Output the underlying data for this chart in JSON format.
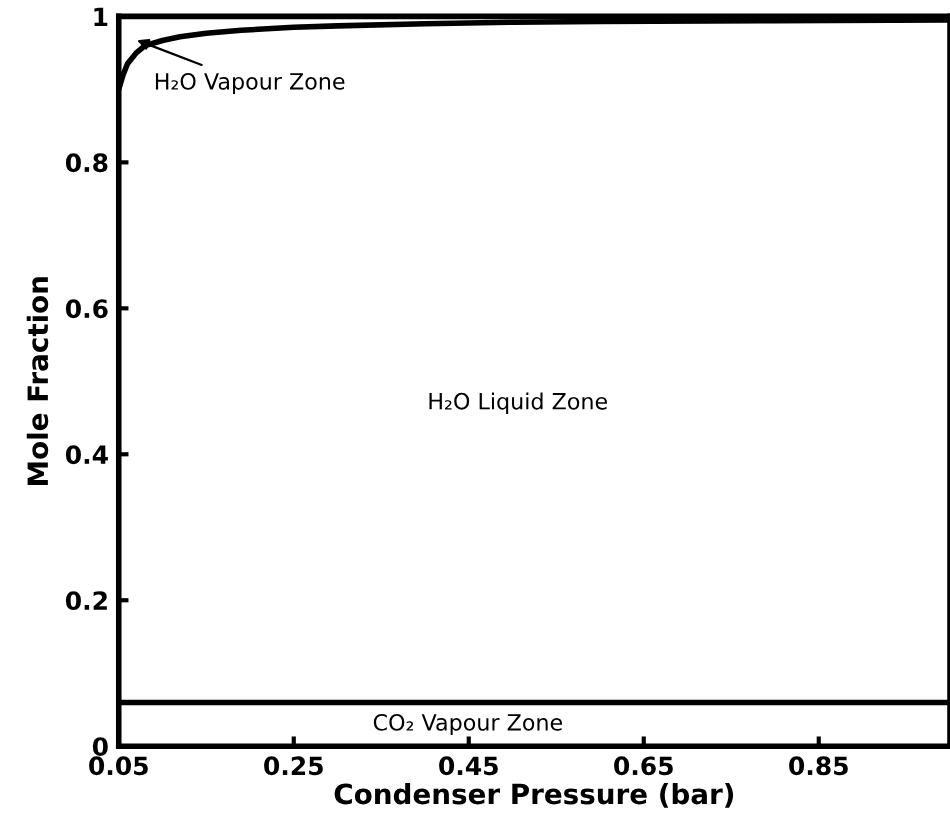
{
  "chart_data": {
    "type": "line",
    "xlabel": "Condenser Pressure (bar)",
    "ylabel": "Mole Fraction",
    "xlim": [
      0.05,
      1.0
    ],
    "ylim": [
      0,
      1
    ],
    "xticks": [
      0.05,
      0.25,
      0.45,
      0.65,
      0.85
    ],
    "yticks": [
      0,
      0.2,
      0.4,
      0.6,
      0.8,
      1
    ],
    "series": [
      {
        "color": "#000000",
        "x": [
          0.05,
          0.055,
          0.06,
          0.07,
          0.08,
          0.1,
          0.12,
          0.15,
          0.19,
          0.25,
          0.3,
          0.4,
          0.5,
          0.6,
          0.8,
          1.0
        ],
        "values": [
          0.9,
          0.92,
          0.935,
          0.95,
          0.96,
          0.967,
          0.972,
          0.977,
          0.981,
          0.985,
          0.987,
          0.99,
          0.992,
          0.993,
          0.994,
          0.995
        ]
      },
      {
        "color": "#000000",
        "x": [
          0.05,
          1.0
        ],
        "values": [
          0.06,
          0.06
        ]
      }
    ],
    "annotations": [
      {
        "text": "H₂O Vapour Zone",
        "x": 0.065,
        "y": 0.97
      },
      "H₂O Liquid Zone",
      "CO₂ Vapour Zone"
    ],
    "grid": false,
    "legend": false,
    "marker": "none",
    "line_style": "solid"
  }
}
